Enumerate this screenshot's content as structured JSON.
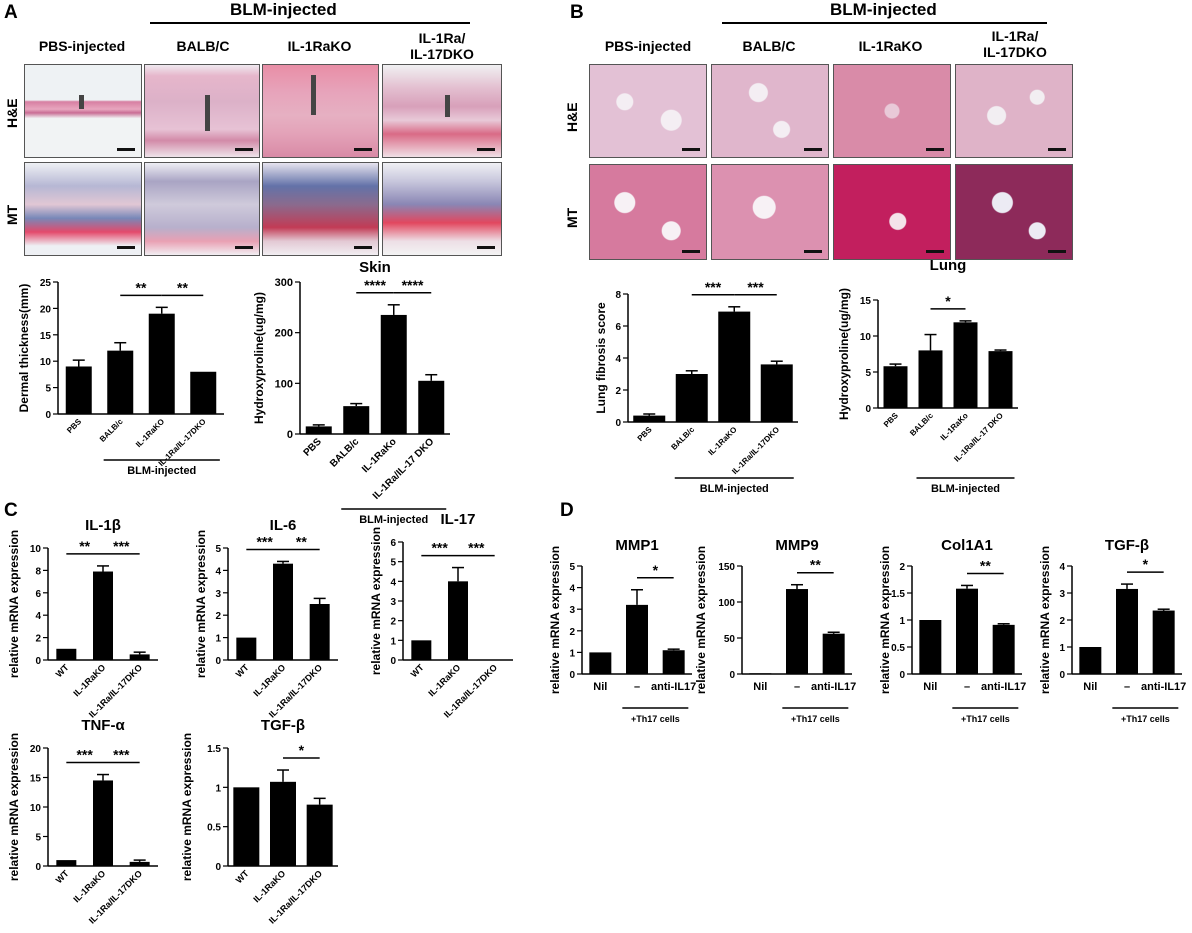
{
  "panels": {
    "A": {
      "letter": "A",
      "group_header": "BLM-injected",
      "col_headers": [
        "PBS-injected",
        "BALB/C",
        "IL-1RaKO",
        "IL-1Ra/\nIL-17DKO"
      ],
      "row_labels": [
        "H&E",
        "MT"
      ]
    },
    "B": {
      "letter": "B",
      "group_header": "BLM-injected",
      "col_headers": [
        "PBS-injected",
        "BALB/C",
        "IL-1RaKO",
        "IL-1Ra/\nIL-17DKO"
      ],
      "row_labels": [
        "H&E",
        "MT"
      ]
    },
    "C": {
      "letter": "C"
    },
    "D": {
      "letter": "D"
    }
  },
  "colors": {
    "bar": "#000000",
    "he_skin": "#e7b7c6",
    "mt_skin": "#b9b8d6",
    "he_lung": "#e8c2d6",
    "mt_lung": "#c21f5e"
  },
  "chart_data": [
    {
      "id": "A_dermal",
      "type": "bar",
      "title": "",
      "ylabel": "Dermal thickness(mm)",
      "ylim": [
        0,
        25
      ],
      "yticks": [
        0,
        5,
        10,
        15,
        20,
        25
      ],
      "categories": [
        "PBS",
        "BALB/c",
        "IL-1RaKO",
        "IL-1Ra/IL-17DKO"
      ],
      "values": [
        9,
        12,
        19,
        8
      ],
      "errors": [
        1.2,
        1.5,
        1.2,
        0
      ],
      "sig": [
        {
          "from": 1,
          "to": 2,
          "label": "**"
        },
        {
          "from": 2,
          "to": 3,
          "label": "**"
        }
      ],
      "group_label": "BLM-injected",
      "group_from": 1,
      "group_to": 3
    },
    {
      "id": "A_hyp",
      "type": "bar",
      "title": "Skin",
      "ylabel": "Hydroxyproline(ug/mg)",
      "ylim": [
        0,
        300
      ],
      "yticks": [
        0,
        100,
        200,
        300
      ],
      "categories": [
        "PBS",
        "BALB/c",
        "IL-1RaKo",
        "IL-1Ra/IL-17 DKO"
      ],
      "values": [
        15,
        55,
        235,
        105
      ],
      "errors": [
        3,
        5,
        20,
        12
      ],
      "sig": [
        {
          "from": 1,
          "to": 2,
          "label": "****"
        },
        {
          "from": 2,
          "to": 3,
          "label": "****"
        }
      ],
      "group_label": "BLM-injected",
      "group_from": 1,
      "group_to": 3
    },
    {
      "id": "B_score",
      "type": "bar",
      "title": "",
      "ylabel": "Lung fibrosis score",
      "ylim": [
        0,
        8
      ],
      "yticks": [
        0,
        2,
        4,
        6,
        8
      ],
      "categories": [
        "PBS",
        "BALB/c",
        "IL-1RaKO",
        "IL-1Ra/IL-17DKO"
      ],
      "values": [
        0.4,
        3,
        6.9,
        3.6
      ],
      "errors": [
        0.1,
        0.2,
        0.3,
        0.2
      ],
      "sig": [
        {
          "from": 1,
          "to": 2,
          "label": "***"
        },
        {
          "from": 2,
          "to": 3,
          "label": "***"
        }
      ],
      "group_label": "BLM-injected",
      "group_from": 1,
      "group_to": 3
    },
    {
      "id": "B_hyp",
      "type": "bar",
      "title": "Lung",
      "ylabel": "Hydroxyproline(ug/mg)",
      "ylim": [
        0,
        15
      ],
      "yticks": [
        0,
        5,
        10,
        15
      ],
      "categories": [
        "PBS",
        "BALB/c",
        "IL-1RaKo",
        "IL-1Ra/IL-17 DKO"
      ],
      "values": [
        5.8,
        8,
        11.9,
        7.9
      ],
      "errors": [
        0.3,
        2.2,
        0.2,
        0.15
      ],
      "sig": [
        {
          "from": 1,
          "to": 2,
          "label": "*"
        }
      ],
      "group_label": "BLM-injected",
      "group_from": 1,
      "group_to": 3
    },
    {
      "id": "C_il1b",
      "type": "bar",
      "title": "IL-1β",
      "ylabel": "relative mRNA expression",
      "ylim": [
        0,
        10
      ],
      "yticks": [
        0,
        2,
        4,
        6,
        8,
        10
      ],
      "categories": [
        "WT",
        "IL-1RaKO",
        "IL-1Ra/IL-17DKO"
      ],
      "values": [
        1,
        7.9,
        0.5
      ],
      "errors": [
        0,
        0.5,
        0.2
      ],
      "sig": [
        {
          "from": 0,
          "to": 1,
          "label": "**"
        },
        {
          "from": 1,
          "to": 2,
          "label": "***"
        }
      ]
    },
    {
      "id": "C_il6",
      "type": "bar",
      "title": "IL-6",
      "ylabel": "relative mRNA expression",
      "ylim": [
        0,
        5
      ],
      "yticks": [
        0,
        1,
        2,
        3,
        4,
        5
      ],
      "categories": [
        "WT",
        "IL-1RaKO",
        "IL-1Ra/IL-17DKO"
      ],
      "values": [
        1,
        4.3,
        2.5
      ],
      "errors": [
        0,
        0.1,
        0.25
      ],
      "sig": [
        {
          "from": 0,
          "to": 1,
          "label": "***"
        },
        {
          "from": 1,
          "to": 2,
          "label": "**"
        }
      ]
    },
    {
      "id": "C_il17",
      "type": "bar",
      "title": "IL-17",
      "ylabel": "relative mRNA expression",
      "ylim": [
        0,
        6
      ],
      "yticks": [
        0,
        1,
        2,
        3,
        4,
        5,
        6
      ],
      "categories": [
        "WT",
        "IL-1RaKO",
        "IL-1Ra/IL-17DKO"
      ],
      "values": [
        1,
        4,
        0
      ],
      "errors": [
        0,
        0.7,
        0
      ],
      "sig": [
        {
          "from": 0,
          "to": 1,
          "label": "***"
        },
        {
          "from": 1,
          "to": 2,
          "label": "***"
        }
      ]
    },
    {
      "id": "C_tnfa",
      "type": "bar",
      "title": "TNF-α",
      "ylabel": "relative mRNA expression",
      "ylim": [
        0,
        20
      ],
      "yticks": [
        0,
        5,
        10,
        15,
        20
      ],
      "categories": [
        "WT",
        "IL-1RaKO",
        "IL-1Ra/IL-17DKO"
      ],
      "values": [
        1,
        14.5,
        0.7
      ],
      "errors": [
        0,
        1,
        0.3
      ],
      "sig": [
        {
          "from": 0,
          "to": 1,
          "label": "***"
        },
        {
          "from": 1,
          "to": 2,
          "label": "***"
        }
      ]
    },
    {
      "id": "C_tgfb",
      "type": "bar",
      "title": "TGF-β",
      "ylabel": "relative mRNA expression",
      "ylim": [
        0,
        1.5
      ],
      "yticks": [
        0.0,
        0.5,
        1.0,
        1.5
      ],
      "categories": [
        "WT",
        "IL-1RaKO",
        "IL-1Ra/IL-17DKO"
      ],
      "values": [
        1,
        1.07,
        0.78
      ],
      "errors": [
        0,
        0.15,
        0.08
      ],
      "sig": [
        {
          "from": 1,
          "to": 2,
          "label": "*"
        }
      ]
    },
    {
      "id": "D_mmp1",
      "type": "bar",
      "title": "MMP1",
      "ylabel": "relative mRNA expression",
      "ylim": [
        0,
        5
      ],
      "yticks": [
        0,
        1,
        2,
        3,
        4,
        5
      ],
      "categories": [
        "Nil",
        "–",
        "anti-IL17"
      ],
      "values": [
        1,
        3.2,
        1.1
      ],
      "errors": [
        0,
        0.7,
        0.05
      ],
      "sig": [
        {
          "from": 1,
          "to": 2,
          "label": "*"
        }
      ],
      "group_label": "+Th17 cells",
      "group_from": 1,
      "group_to": 2
    },
    {
      "id": "D_mmp9",
      "type": "bar",
      "title": "MMP9",
      "ylabel": "relative mRNA expression",
      "ylim": [
        0,
        150
      ],
      "yticks": [
        0,
        50,
        100,
        150
      ],
      "categories": [
        "Nil",
        "–",
        "anti-IL17"
      ],
      "values": [
        1,
        118,
        56
      ],
      "errors": [
        0,
        6,
        2
      ],
      "sig": [
        {
          "from": 1,
          "to": 2,
          "label": "**"
        }
      ],
      "group_label": "+Th17 cells",
      "group_from": 1,
      "group_to": 2
    },
    {
      "id": "D_col1a1",
      "type": "bar",
      "title": "Col1A1",
      "ylabel": "relative mRNA expression",
      "ylim": [
        0,
        2
      ],
      "yticks": [
        0.0,
        0.5,
        1.0,
        1.5,
        2.0
      ],
      "categories": [
        "Nil",
        "–",
        "anti-IL17"
      ],
      "values": [
        1,
        1.58,
        0.91
      ],
      "errors": [
        0,
        0.06,
        0.02
      ],
      "sig": [
        {
          "from": 1,
          "to": 2,
          "label": "**"
        }
      ],
      "group_label": "+Th17 cells",
      "group_from": 1,
      "group_to": 2
    },
    {
      "id": "D_tgfb",
      "type": "bar",
      "title": "TGF-β",
      "ylabel": "relative mRNA expression",
      "ylim": [
        0,
        4
      ],
      "yticks": [
        0,
        1,
        2,
        3,
        4
      ],
      "categories": [
        "Nil",
        "–",
        "anti-IL17"
      ],
      "values": [
        1,
        3.15,
        2.35
      ],
      "errors": [
        0,
        0.18,
        0.05
      ],
      "sig": [
        {
          "from": 1,
          "to": 2,
          "label": "*"
        }
      ],
      "group_label": "+Th17 cells",
      "group_from": 1,
      "group_to": 2
    }
  ]
}
